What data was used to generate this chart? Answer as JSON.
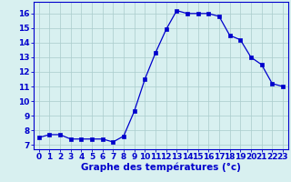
{
  "x": [
    0,
    1,
    2,
    3,
    4,
    5,
    6,
    7,
    8,
    9,
    10,
    11,
    12,
    13,
    14,
    15,
    16,
    17,
    18,
    19,
    20,
    21,
    22,
    23
  ],
  "y": [
    7.5,
    7.7,
    7.7,
    7.4,
    7.4,
    7.4,
    7.4,
    7.2,
    7.6,
    9.3,
    11.5,
    13.3,
    14.9,
    16.2,
    16.0,
    16.0,
    16.0,
    15.8,
    14.5,
    14.2,
    13.0,
    12.5,
    11.2,
    11.0
  ],
  "line_color": "#0000cc",
  "marker": "s",
  "marker_size": 2.5,
  "background_color": "#d8f0f0",
  "grid_color": "#aacccc",
  "xlabel": "Graphe des températures (°c)",
  "xlabel_fontsize": 7.5,
  "ylabel_ticks": [
    7,
    8,
    9,
    10,
    11,
    12,
    13,
    14,
    15,
    16
  ],
  "xlim": [
    -0.5,
    23.5
  ],
  "ylim": [
    6.7,
    16.8
  ],
  "tick_fontsize": 6.5,
  "label_color": "#0000cc",
  "spine_color": "#0000cc"
}
